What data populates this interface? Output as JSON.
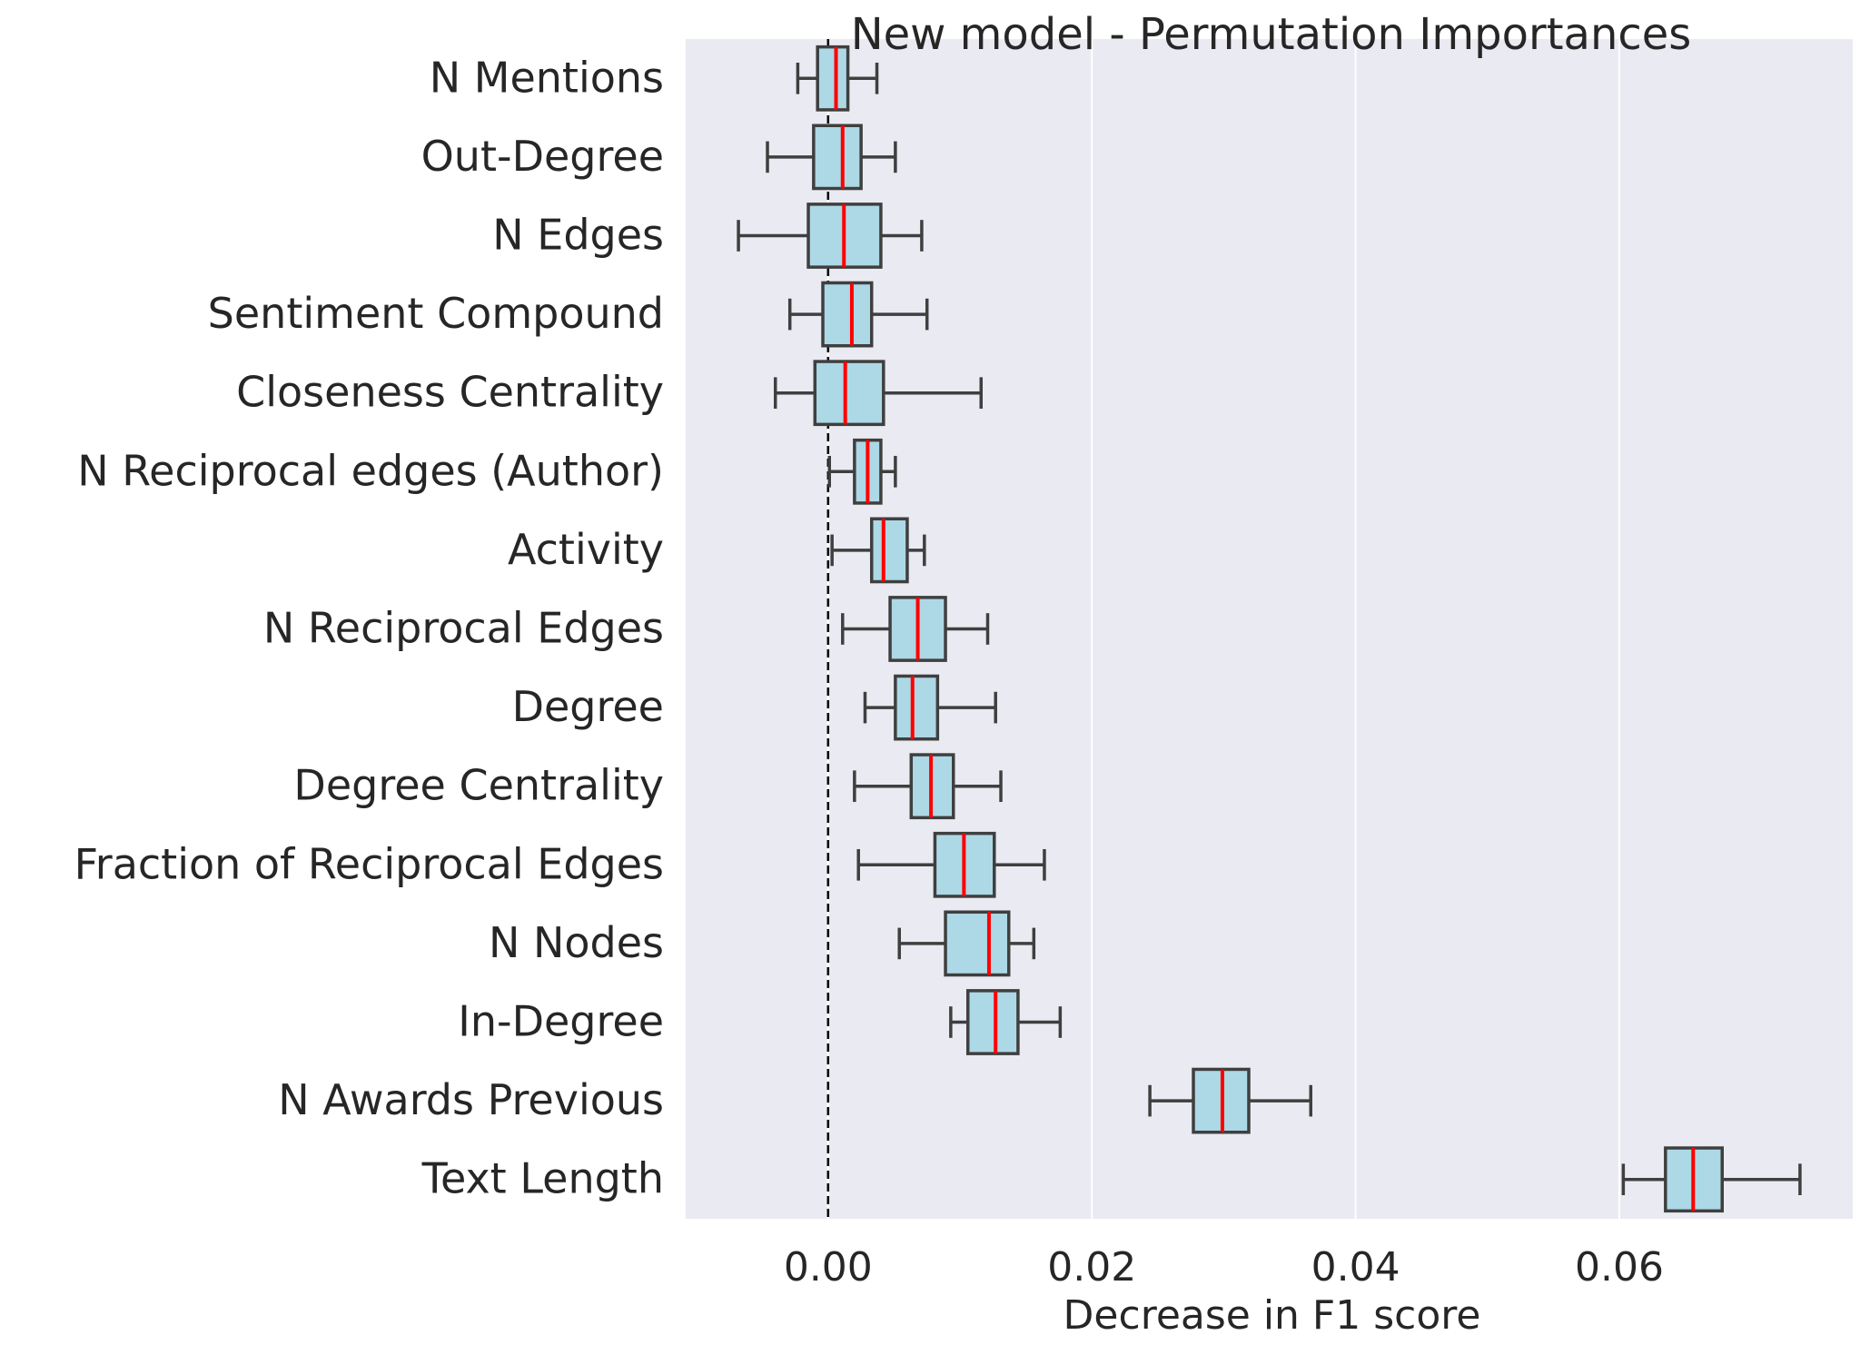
{
  "chart_data": {
    "type": "boxplot",
    "title": "New model - Permutation Importances",
    "xlabel": "Decrease in F1 score",
    "ylabel": "",
    "xlim": [
      -0.0108,
      0.0777
    ],
    "xticks": [
      0.0,
      0.02,
      0.04,
      0.06
    ],
    "xtick_labels": [
      "0.00",
      "0.02",
      "0.04",
      "0.06"
    ],
    "grid": true,
    "orientation": "horizontal",
    "reference_line": {
      "x": 0.0,
      "style": "dashed"
    },
    "box_color": "#add8e6",
    "median_color": "#ff0000",
    "edge_color": "#3f3f3f",
    "background_color": "#eaeaf2",
    "categories": [
      "N Mentions",
      "Out-Degree",
      "N Edges",
      "Sentiment Compound",
      "Closeness Centrality",
      "N Reciprocal edges (Author)",
      "Activity",
      "N Reciprocal Edges",
      "Degree",
      "Degree Centrality",
      "Fraction of Reciprocal Edges",
      "N Nodes",
      "In-Degree",
      "N Awards Previous ",
      "Text Length"
    ],
    "boxes": [
      {
        "whislo": -0.0023,
        "q1": -0.0008,
        "med": 0.0006,
        "q3": 0.0015,
        "whishi": 0.0037
      },
      {
        "whislo": -0.0046,
        "q1": -0.0011,
        "med": 0.0011,
        "q3": 0.0025,
        "whishi": 0.0051
      },
      {
        "whislo": -0.0068,
        "q1": -0.0015,
        "med": 0.0012,
        "q3": 0.004,
        "whishi": 0.0071
      },
      {
        "whislo": -0.0029,
        "q1": -0.0004,
        "med": 0.0018,
        "q3": 0.0033,
        "whishi": 0.0075
      },
      {
        "whislo": -0.004,
        "q1": -0.001,
        "med": 0.0013,
        "q3": 0.0042,
        "whishi": 0.0116
      },
      {
        "whislo": 0.0001,
        "q1": 0.002,
        "med": 0.003,
        "q3": 0.004,
        "whishi": 0.0051
      },
      {
        "whislo": 0.0003,
        "q1": 0.0033,
        "med": 0.0042,
        "q3": 0.006,
        "whishi": 0.0073
      },
      {
        "whislo": 0.0011,
        "q1": 0.0047,
        "med": 0.0068,
        "q3": 0.0089,
        "whishi": 0.0121
      },
      {
        "whislo": 0.0028,
        "q1": 0.0051,
        "med": 0.0064,
        "q3": 0.0083,
        "whishi": 0.0127
      },
      {
        "whislo": 0.002,
        "q1": 0.0063,
        "med": 0.0078,
        "q3": 0.0095,
        "whishi": 0.0131
      },
      {
        "whislo": 0.0023,
        "q1": 0.0081,
        "med": 0.0103,
        "q3": 0.0126,
        "whishi": 0.0164
      },
      {
        "whislo": 0.0054,
        "q1": 0.0089,
        "med": 0.0122,
        "q3": 0.0137,
        "whishi": 0.0156
      },
      {
        "whislo": 0.0093,
        "q1": 0.0106,
        "med": 0.0127,
        "q3": 0.0144,
        "whishi": 0.0176
      },
      {
        "whislo": 0.0244,
        "q1": 0.0277,
        "med": 0.0299,
        "q3": 0.0319,
        "whishi": 0.0366
      },
      {
        "whislo": 0.0603,
        "q1": 0.0635,
        "med": 0.0656,
        "q3": 0.0678,
        "whishi": 0.0737
      }
    ]
  }
}
